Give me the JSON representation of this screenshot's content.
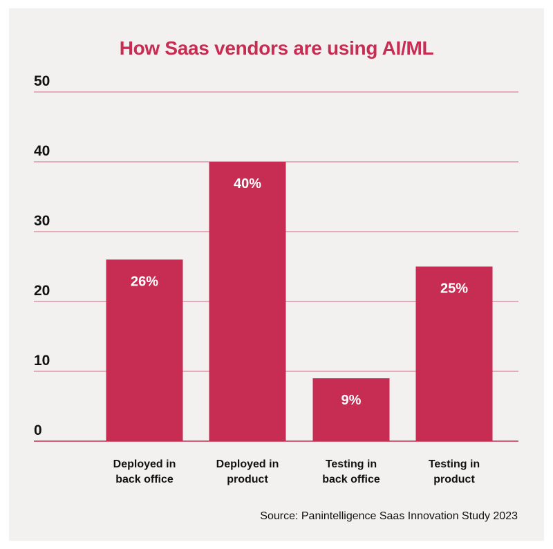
{
  "chart_data": {
    "type": "bar",
    "title": "How Saas vendors are using AI/ML",
    "categories": [
      [
        "Deployed in",
        "back office"
      ],
      [
        "Deployed in",
        "product"
      ],
      [
        "Testing in",
        "back office"
      ],
      [
        "Testing in",
        "product"
      ]
    ],
    "values": [
      26,
      40,
      9,
      25
    ],
    "data_labels": [
      "26%",
      "40%",
      "9%",
      "25%"
    ],
    "yticks": [
      0,
      10,
      20,
      30,
      40,
      50
    ],
    "ylim": [
      0,
      50
    ],
    "grid": true,
    "bar_color": "#c72c52",
    "grid_color": "#c72c52",
    "source": "Source: Panintelligence Saas Innovation Study 2023"
  }
}
